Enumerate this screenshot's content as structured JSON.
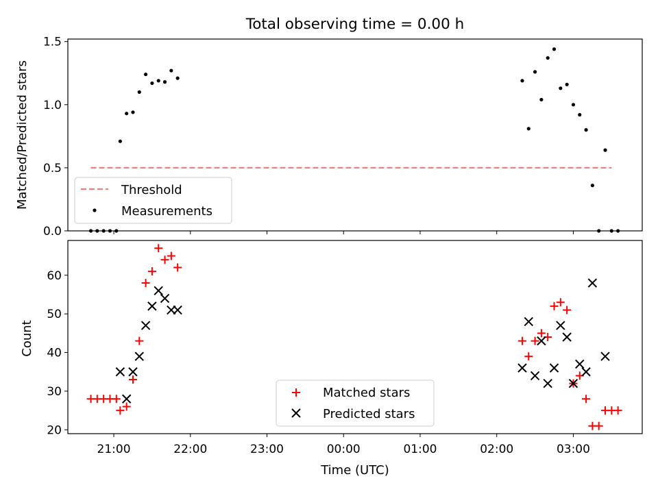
{
  "figure": {
    "title": "Total observing time = 0.00 h"
  },
  "chart_data": [
    {
      "type": "scatter",
      "ylabel": "Matched/Predicted stars",
      "xlim": [
        "20:24",
        "03:54"
      ],
      "ylim": [
        0,
        1.52
      ],
      "yticks": [
        {
          "value": 0,
          "label": "0.0"
        },
        {
          "value": 0.5,
          "label": "0.5"
        },
        {
          "value": 1.0,
          "label": "1.0"
        },
        {
          "value": 1.5,
          "label": "1.5"
        }
      ],
      "legend": {
        "position": "lower-left",
        "entries": [
          "Threshold",
          "Measurements"
        ]
      },
      "threshold": {
        "name": "Threshold",
        "value": 0.5,
        "x_range": [
          "20:42",
          "03:30"
        ],
        "color": "#f08080",
        "style": "dashed"
      },
      "series": [
        {
          "name": "Measurements",
          "color": "#000000",
          "marker": "dot",
          "points": [
            [
              "20:42",
              0.0
            ],
            [
              "20:47",
              0.0
            ],
            [
              "20:52",
              0.0
            ],
            [
              "20:57",
              0.0
            ],
            [
              "21:02",
              0.0
            ],
            [
              "21:05",
              0.71
            ],
            [
              "21:10",
              0.93
            ],
            [
              "21:15",
              0.94
            ],
            [
              "21:20",
              1.1
            ],
            [
              "21:25",
              1.24
            ],
            [
              "21:30",
              1.17
            ],
            [
              "21:35",
              1.19
            ],
            [
              "21:40",
              1.18
            ],
            [
              "21:45",
              1.27
            ],
            [
              "21:50",
              1.21
            ],
            [
              "02:20",
              1.19
            ],
            [
              "02:25",
              0.81
            ],
            [
              "02:30",
              1.26
            ],
            [
              "02:35",
              1.04
            ],
            [
              "02:40",
              1.37
            ],
            [
              "02:45",
              1.44
            ],
            [
              "02:50",
              1.13
            ],
            [
              "02:55",
              1.16
            ],
            [
              "03:00",
              1.0
            ],
            [
              "03:05",
              0.92
            ],
            [
              "03:10",
              0.8
            ],
            [
              "03:15",
              0.36
            ],
            [
              "03:20",
              0.0
            ],
            [
              "03:25",
              0.64
            ],
            [
              "03:30",
              0.0
            ],
            [
              "03:35",
              0.0
            ]
          ]
        }
      ]
    },
    {
      "type": "scatter",
      "xlabel": "Time (UTC)",
      "ylabel": "Count",
      "xlim": [
        "20:24",
        "03:54"
      ],
      "ylim": [
        19,
        69
      ],
      "xticks": [
        "21:00",
        "22:00",
        "23:00",
        "00:00",
        "01:00",
        "02:00",
        "03:00"
      ],
      "yticks": [
        {
          "value": 20,
          "label": "20"
        },
        {
          "value": 30,
          "label": "30"
        },
        {
          "value": 40,
          "label": "40"
        },
        {
          "value": 50,
          "label": "50"
        },
        {
          "value": 60,
          "label": "60"
        }
      ],
      "legend": {
        "position": "lower-center",
        "entries": [
          "Matched stars",
          "Predicted stars"
        ]
      },
      "series": [
        {
          "name": "Matched stars",
          "color": "#ff0000",
          "marker": "plus",
          "points": [
            [
              "20:42",
              28
            ],
            [
              "20:47",
              28
            ],
            [
              "20:52",
              28
            ],
            [
              "20:57",
              28
            ],
            [
              "21:02",
              28
            ],
            [
              "21:05",
              25
            ],
            [
              "21:10",
              26
            ],
            [
              "21:15",
              33
            ],
            [
              "21:20",
              43
            ],
            [
              "21:25",
              58
            ],
            [
              "21:30",
              61
            ],
            [
              "21:35",
              67
            ],
            [
              "21:40",
              64
            ],
            [
              "21:45",
              65
            ],
            [
              "21:50",
              62
            ],
            [
              "02:20",
              43
            ],
            [
              "02:25",
              39
            ],
            [
              "02:30",
              43
            ],
            [
              "02:35",
              45
            ],
            [
              "02:40",
              44
            ],
            [
              "02:45",
              52
            ],
            [
              "02:50",
              53
            ],
            [
              "02:55",
              51
            ],
            [
              "03:00",
              32
            ],
            [
              "03:05",
              34
            ],
            [
              "03:10",
              28
            ],
            [
              "03:15",
              21
            ],
            [
              "03:20",
              21
            ],
            [
              "03:25",
              25
            ],
            [
              "03:30",
              25
            ],
            [
              "03:35",
              25
            ]
          ]
        },
        {
          "name": "Predicted stars",
          "color": "#000000",
          "marker": "x",
          "points": [
            [
              "21:05",
              35
            ],
            [
              "21:10",
              28
            ],
            [
              "21:15",
              35
            ],
            [
              "21:20",
              39
            ],
            [
              "21:25",
              47
            ],
            [
              "21:30",
              52
            ],
            [
              "21:35",
              56
            ],
            [
              "21:40",
              54
            ],
            [
              "21:45",
              51
            ],
            [
              "21:50",
              51
            ],
            [
              "02:20",
              36
            ],
            [
              "02:25",
              48
            ],
            [
              "02:30",
              34
            ],
            [
              "02:35",
              43
            ],
            [
              "02:40",
              32
            ],
            [
              "02:45",
              36
            ],
            [
              "02:50",
              47
            ],
            [
              "02:55",
              44
            ],
            [
              "03:00",
              32
            ],
            [
              "03:05",
              37
            ],
            [
              "03:10",
              35
            ],
            [
              "03:15",
              58
            ],
            [
              "03:25",
              39
            ]
          ]
        }
      ]
    }
  ]
}
